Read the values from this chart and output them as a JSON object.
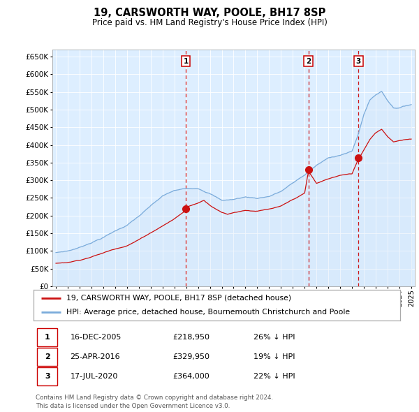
{
  "title": "19, CARSWORTH WAY, POOLE, BH17 8SP",
  "subtitle": "Price paid vs. HM Land Registry's House Price Index (HPI)",
  "sale_dates_numeric": [
    2005.958,
    2016.319,
    2020.542
  ],
  "sale_prices": [
    218950,
    329950,
    364000
  ],
  "sale_labels": [
    "1",
    "2",
    "3"
  ],
  "legend_property": "19, CARSWORTH WAY, POOLE, BH17 8SP (detached house)",
  "legend_hpi": "HPI: Average price, detached house, Bournemouth Christchurch and Poole",
  "table_rows": [
    {
      "num": "1",
      "date": "16-DEC-2005",
      "price": "£218,950",
      "pct": "26% ↓ HPI"
    },
    {
      "num": "2",
      "date": "25-APR-2016",
      "price": "£329,950",
      "pct": "19% ↓ HPI"
    },
    {
      "num": "3",
      "date": "17-JUL-2020",
      "price": "£364,000",
      "pct": "22% ↓ HPI"
    }
  ],
  "footnote1": "Contains HM Land Registry data © Crown copyright and database right 2024.",
  "footnote2": "This data is licensed under the Open Government Licence v3.0.",
  "hpi_color": "#7aabdb",
  "hpi_fill": "#cce0f5",
  "sale_color": "#cc1111",
  "vline_color": "#cc0000",
  "bg_color": "#ddeeff",
  "ylim": [
    0,
    670000
  ],
  "yticks": [
    0,
    50000,
    100000,
    150000,
    200000,
    250000,
    300000,
    350000,
    400000,
    450000,
    500000,
    550000,
    600000,
    650000
  ],
  "xlim_start": 1994.7,
  "xlim_end": 2025.3,
  "hpi_knots_x": [
    1995,
    1996,
    1997,
    1998,
    1999,
    2000,
    2001,
    2002,
    2003,
    2004,
    2005,
    2006,
    2007,
    2008,
    2009,
    2010,
    2011,
    2012,
    2013,
    2014,
    2015,
    2016,
    2017,
    2018,
    2019,
    2020,
    2020.5,
    2021,
    2021.5,
    2022,
    2022.5,
    2023,
    2023.5,
    2024,
    2024.5,
    2025
  ],
  "hpi_knots_y": [
    95000,
    100000,
    110000,
    125000,
    140000,
    158000,
    175000,
    200000,
    228000,
    255000,
    270000,
    275000,
    278000,
    265000,
    245000,
    248000,
    255000,
    252000,
    258000,
    272000,
    295000,
    318000,
    345000,
    365000,
    375000,
    385000,
    430000,
    490000,
    530000,
    545000,
    555000,
    530000,
    510000,
    510000,
    515000,
    520000
  ],
  "prop_knots_x": [
    1995,
    1996,
    1997,
    1998,
    1999,
    2000,
    2001,
    2002,
    2003,
    2004,
    2005,
    2005.958,
    2006,
    2007,
    2007.5,
    2008,
    2009,
    2009.5,
    2010,
    2011,
    2012,
    2013,
    2014,
    2015,
    2016,
    2016.319,
    2017,
    2018,
    2019,
    2019.5,
    2020,
    2020.542,
    2021,
    2021.5,
    2022,
    2022.5,
    2023,
    2023.5,
    2024,
    2024.5,
    2025
  ],
  "prop_knots_y": [
    65000,
    68000,
    75000,
    85000,
    96000,
    108000,
    118000,
    135000,
    155000,
    175000,
    195000,
    218950,
    228000,
    240000,
    248000,
    235000,
    215000,
    210000,
    215000,
    222000,
    220000,
    225000,
    232000,
    250000,
    268000,
    329950,
    295000,
    308000,
    318000,
    320000,
    322000,
    364000,
    390000,
    420000,
    440000,
    450000,
    430000,
    415000,
    418000,
    420000,
    422000
  ]
}
